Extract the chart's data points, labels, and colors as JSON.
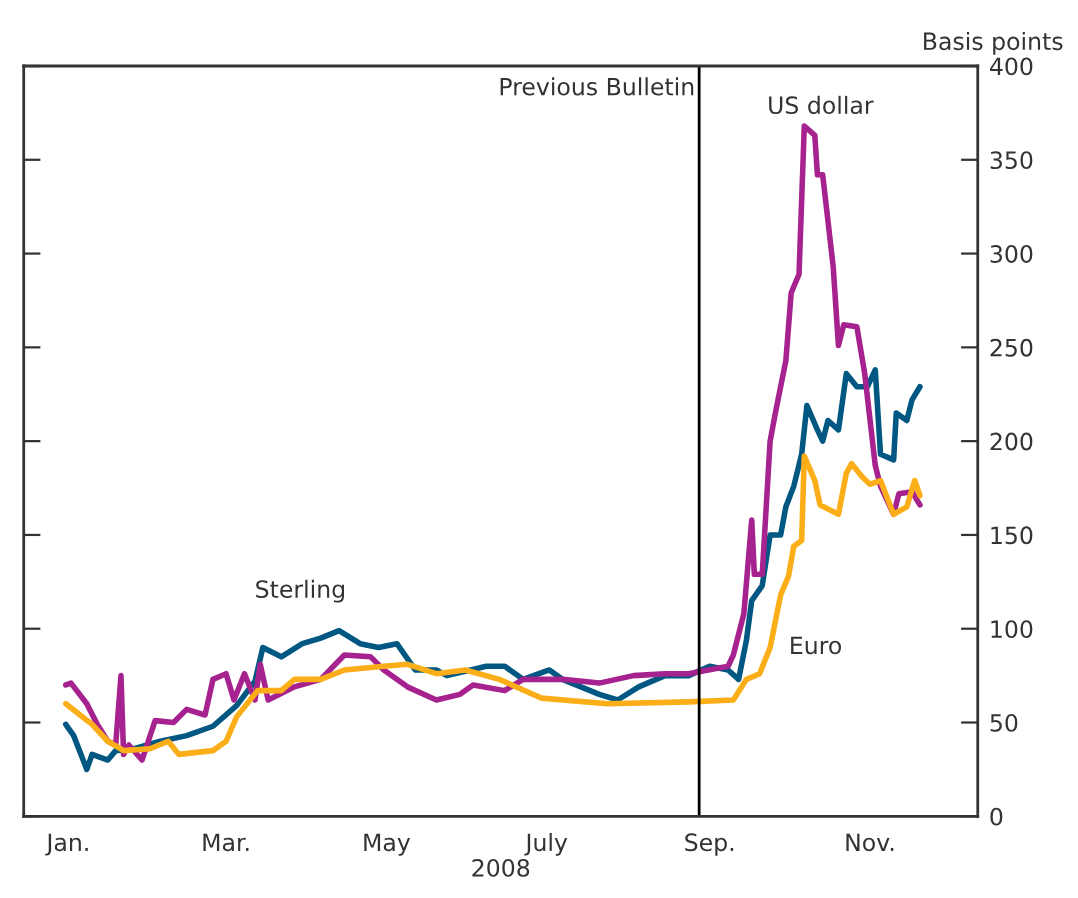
{
  "chart_data": {
    "type": "line",
    "xlabel": "2008",
    "ylabel": "Basis points",
    "xlim": [
      "2007-12-15",
      "2008-12-12"
    ],
    "xticks": [
      {
        "value": "2008-01-01",
        "label": "Jan."
      },
      {
        "value": "2008-03-01",
        "label": "Mar."
      },
      {
        "value": "2008-05-01",
        "label": "May"
      },
      {
        "value": "2008-07-01",
        "label": "July"
      },
      {
        "value": "2008-09-01",
        "label": "Sep."
      },
      {
        "value": "2008-11-01",
        "label": "Nov."
      }
    ],
    "ylim": [
      0,
      400
    ],
    "yticks": [
      0,
      50,
      100,
      150,
      200,
      250,
      300,
      350,
      400
    ],
    "grid": false,
    "legend": false,
    "marker": "none",
    "line_style": "solid",
    "ref_lines": [
      {
        "axis": "x",
        "value": "2008-08-28",
        "label": "Previous Bulletin",
        "color": "#000000"
      }
    ],
    "series": [
      {
        "name": "Sterling",
        "color": "#005782",
        "x": [
          "2007-12-31",
          "2008-01-03",
          "2008-01-08",
          "2008-01-10",
          "2008-01-16",
          "2008-01-19",
          "2008-01-26",
          "2008-02-05",
          "2008-02-15",
          "2008-02-25",
          "2008-03-05",
          "2008-03-12",
          "2008-03-15",
          "2008-03-22",
          "2008-03-30",
          "2008-04-06",
          "2008-04-13",
          "2008-04-21",
          "2008-04-28",
          "2008-05-05",
          "2008-05-12",
          "2008-05-20",
          "2008-05-24",
          "2008-06-08",
          "2008-06-15",
          "2008-06-22",
          "2008-07-02",
          "2008-07-07",
          "2008-07-21",
          "2008-07-28",
          "2008-08-05",
          "2008-08-15",
          "2008-08-24",
          "2008-09-01",
          "2008-09-08",
          "2008-09-12",
          "2008-09-15",
          "2008-09-17",
          "2008-09-21",
          "2008-09-24",
          "2008-09-28",
          "2008-09-30",
          "2008-10-03",
          "2008-10-06",
          "2008-10-08",
          "2008-10-12",
          "2008-10-14",
          "2008-10-16",
          "2008-10-20",
          "2008-10-23",
          "2008-10-27",
          "2008-10-31",
          "2008-11-03",
          "2008-11-05",
          "2008-11-10",
          "2008-11-11",
          "2008-11-15",
          "2008-11-17",
          "2008-11-20"
        ],
        "values": [
          49,
          43,
          25,
          33,
          30,
          35,
          36,
          40,
          43,
          48,
          59,
          72,
          90,
          85,
          92,
          95,
          99,
          92,
          90,
          92,
          78,
          78,
          75,
          80,
          80,
          73,
          78,
          73,
          65,
          62,
          69,
          75,
          75,
          80,
          78,
          73,
          94,
          115,
          123,
          150,
          150,
          165,
          176,
          193,
          219,
          206,
          200,
          211,
          206,
          236,
          229,
          229,
          238,
          193,
          190,
          215,
          211,
          222,
          229
        ]
      },
      {
        "name": "US dollar",
        "color": "#a6228f",
        "x": [
          "2007-12-31",
          "2008-01-02",
          "2008-01-08",
          "2008-01-12",
          "2008-01-16",
          "2008-01-19",
          "2008-01-21",
          "2008-01-22",
          "2008-01-24",
          "2008-01-29",
          "2008-02-03",
          "2008-02-10",
          "2008-02-15",
          "2008-02-22",
          "2008-02-25",
          "2008-03-01",
          "2008-03-04",
          "2008-03-08",
          "2008-03-12",
          "2008-03-14",
          "2008-03-17",
          "2008-03-27",
          "2008-04-06",
          "2008-04-15",
          "2008-04-25",
          "2008-04-30",
          "2008-05-09",
          "2008-05-20",
          "2008-05-29",
          "2008-06-03",
          "2008-06-15",
          "2008-06-22",
          "2008-07-07",
          "2008-07-21",
          "2008-08-03",
          "2008-08-15",
          "2008-08-24",
          "2008-09-08",
          "2008-09-10",
          "2008-09-14",
          "2008-09-17",
          "2008-09-18",
          "2008-09-21",
          "2008-09-24",
          "2008-09-26",
          "2008-09-30",
          "2008-10-02",
          "2008-10-05",
          "2008-10-07",
          "2008-10-11",
          "2008-10-12",
          "2008-10-14",
          "2008-10-18",
          "2008-10-20",
          "2008-10-22",
          "2008-10-27",
          "2008-10-30",
          "2008-11-03",
          "2008-11-05",
          "2008-11-10",
          "2008-11-12",
          "2008-11-17",
          "2008-11-20"
        ],
        "values": [
          70,
          71,
          60,
          49,
          40,
          38,
          75,
          33,
          38,
          30,
          51,
          50,
          57,
          54,
          73,
          76,
          62,
          76,
          62,
          81,
          62,
          69,
          73,
          86,
          85,
          78,
          69,
          62,
          65,
          70,
          67,
          73,
          73,
          71,
          75,
          76,
          76,
          80,
          86,
          108,
          158,
          129,
          129,
          200,
          215,
          243,
          279,
          289,
          368,
          363,
          342,
          342,
          293,
          251,
          262,
          261,
          236,
          187,
          176,
          161,
          172,
          173,
          166
        ]
      },
      {
        "name": "Euro",
        "color": "#fbae17",
        "x": [
          "2007-12-31",
          "2008-01-10",
          "2008-01-16",
          "2008-01-22",
          "2008-02-01",
          "2008-02-08",
          "2008-02-12",
          "2008-02-25",
          "2008-03-01",
          "2008-03-05",
          "2008-03-13",
          "2008-03-22",
          "2008-03-27",
          "2008-04-06",
          "2008-04-15",
          "2008-04-30",
          "2008-05-09",
          "2008-05-20",
          "2008-05-31",
          "2008-06-13",
          "2008-06-29",
          "2008-07-24",
          "2008-08-24",
          "2008-09-10",
          "2008-09-15",
          "2008-09-20",
          "2008-09-24",
          "2008-09-28",
          "2008-10-01",
          "2008-10-03",
          "2008-10-06",
          "2008-10-07",
          "2008-10-11",
          "2008-10-13",
          "2008-10-20",
          "2008-10-23",
          "2008-10-25",
          "2008-10-29",
          "2008-11-01",
          "2008-11-05",
          "2008-11-10",
          "2008-11-15",
          "2008-11-18",
          "2008-11-20"
        ],
        "values": [
          60,
          49,
          40,
          35,
          36,
          40,
          33,
          35,
          40,
          53,
          67,
          67,
          73,
          73,
          78,
          80,
          81,
          76,
          78,
          73,
          63,
          60,
          61,
          62,
          73,
          76,
          90,
          118,
          128,
          144,
          147,
          192,
          179,
          166,
          161,
          183,
          188,
          181,
          177,
          179,
          161,
          165,
          179,
          171
        ]
      }
    ]
  }
}
